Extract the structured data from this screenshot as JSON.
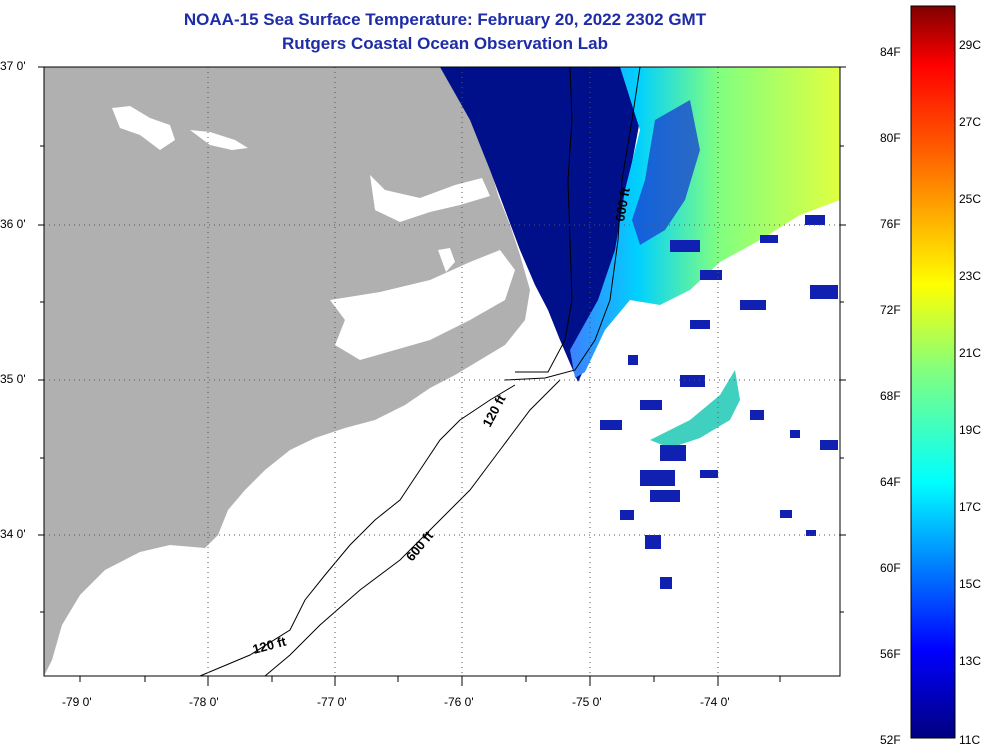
{
  "title": {
    "line1": "NOAA-15 Sea Surface Temperature:  February 20, 2022 2302 GMT",
    "line2": "Rutgers Coastal Ocean Observation Lab"
  },
  "map": {
    "lat_labels": [
      "37 0'",
      "36 0'",
      "35 0'",
      "34 0'"
    ],
    "lon_labels": [
      "-79 0'",
      "-78 0'",
      "-77 0'",
      "-76 0'",
      "-75 0'",
      "-74 0'"
    ],
    "contour_labels": [
      "600 ft",
      "120 ft",
      "600 ft",
      "120 ft"
    ],
    "colors": {
      "land": "#b0b0b0",
      "no_data": "#ffffff",
      "cold_water": "#00108a",
      "grid": "#000000"
    }
  },
  "colorbar": {
    "fahrenheit_labels": [
      "84F",
      "80F",
      "76F",
      "72F",
      "68F",
      "64F",
      "60F",
      "56F",
      "52F"
    ],
    "celsius_labels": [
      "29C",
      "27C",
      "25C",
      "23C",
      "21C",
      "19C",
      "17C",
      "15C",
      "13C",
      "11C"
    ],
    "colors": [
      "#00007f",
      "#0000ff",
      "#0080ff",
      "#00ffff",
      "#80ff80",
      "#ffff00",
      "#ff8000",
      "#ff0000",
      "#7f0000"
    ]
  }
}
